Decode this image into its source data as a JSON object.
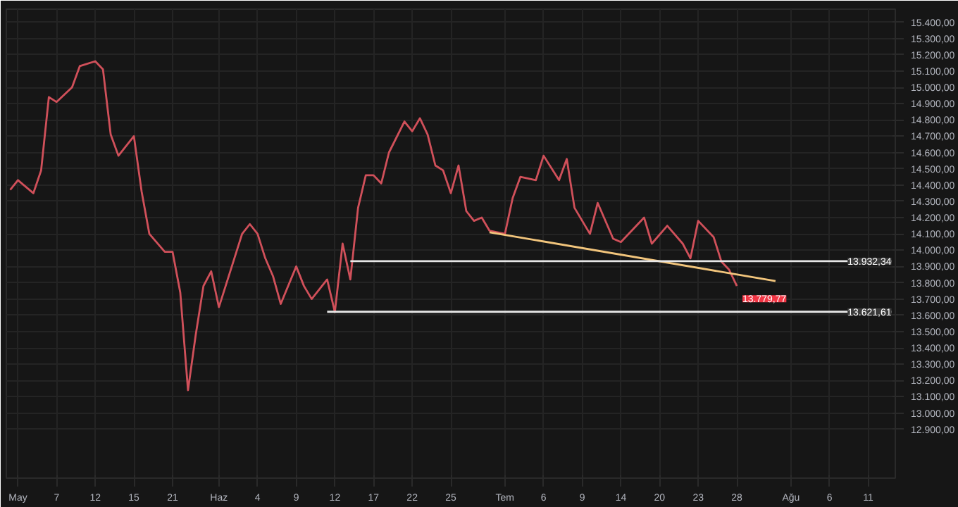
{
  "chart_data": {
    "type": "line",
    "grid": true,
    "line_style": "solid",
    "marker": "none",
    "ylim": [
      12600,
      15480
    ],
    "categories": [
      null,
      "May",
      null,
      null,
      null,
      null,
      "7",
      null,
      null,
      null,
      null,
      "12",
      null,
      null,
      null,
      null,
      "15",
      null,
      null,
      null,
      null,
      "21",
      null,
      null,
      null,
      null,
      null,
      "Haz",
      null,
      null,
      null,
      null,
      "4",
      null,
      null,
      null,
      null,
      "9",
      null,
      null,
      null,
      null,
      "12",
      null,
      null,
      null,
      null,
      "17",
      null,
      null,
      null,
      null,
      "22",
      null,
      null,
      null,
      null,
      "25",
      null,
      null,
      null,
      null,
      null,
      null,
      "Tem",
      null,
      null,
      null,
      null,
      "6",
      null,
      null,
      null,
      null,
      "9",
      null,
      null,
      null,
      null,
      "14",
      null,
      null,
      null,
      null,
      "20",
      null,
      null,
      null,
      null,
      "23",
      null,
      null,
      null,
      null,
      "28",
      null,
      null,
      null,
      null,
      null,
      null,
      "Ağu",
      null,
      null,
      null,
      null,
      "6",
      null,
      null,
      null,
      null,
      "11",
      null,
      null,
      null
    ],
    "yticks": [
      {
        "value": 12900,
        "label": "12.900,00"
      },
      {
        "value": 13000,
        "label": "13.000,00"
      },
      {
        "value": 13100,
        "label": "13.100,00"
      },
      {
        "value": 13200,
        "label": "13.200,00"
      },
      {
        "value": 13300,
        "label": "13.300,00"
      },
      {
        "value": 13400,
        "label": "13.400,00"
      },
      {
        "value": 13500,
        "label": "13.500,00"
      },
      {
        "value": 13600,
        "label": "13.600,00"
      },
      {
        "value": 13700,
        "label": "13.700,00"
      },
      {
        "value": 13800,
        "label": "13.800,00"
      },
      {
        "value": 13900,
        "label": "13.900,00"
      },
      {
        "value": 14000,
        "label": "14.000,00"
      },
      {
        "value": 14100,
        "label": "14.100,00"
      },
      {
        "value": 14200,
        "label": "14.200,00"
      },
      {
        "value": 14300,
        "label": "14.300,00"
      },
      {
        "value": 14400,
        "label": "14.400,00"
      },
      {
        "value": 14500,
        "label": "14.500,00"
      },
      {
        "value": 14600,
        "label": "14.600,00"
      },
      {
        "value": 14700,
        "label": "14.700,00"
      },
      {
        "value": 14800,
        "label": "14.800,00"
      },
      {
        "value": 14900,
        "label": "14.900,00"
      },
      {
        "value": 15000,
        "label": "15.000,00"
      },
      {
        "value": 15100,
        "label": "15.100,00"
      },
      {
        "value": 15200,
        "label": "15.200,00"
      },
      {
        "value": 15300,
        "label": "15.300,00"
      },
      {
        "value": 15400,
        "label": "15.400,00"
      }
    ],
    "series": [
      {
        "color": "#d0505a",
        "values": [
          14370,
          14430,
          null,
          14350,
          14490,
          14940,
          14910,
          null,
          15000,
          15130,
          null,
          15160,
          15110,
          14710,
          14580,
          null,
          14700,
          14360,
          14100,
          null,
          13990,
          13990,
          13740,
          13140,
          13480,
          13780,
          13870,
          13650,
          null,
          13950,
          14100,
          14160,
          14100,
          13950,
          13840,
          13670,
          null,
          13900,
          13780,
          13700,
          null,
          13820,
          13620,
          14040,
          13820,
          14260,
          14460,
          14460,
          14410,
          14600,
          null,
          14790,
          14730,
          14810,
          14710,
          14520,
          14490,
          14350,
          14520,
          14240,
          14180,
          14200,
          14120,
          null,
          14100,
          14320,
          14450,
          null,
          14430,
          14580,
          null,
          14430,
          14560,
          14260,
          null,
          14100,
          14290,
          null,
          14070,
          14050,
          null,
          null,
          14200,
          14040,
          null,
          14150,
          null,
          14040,
          13950,
          14180,
          null,
          14080,
          13930,
          13880,
          13779.77,
          null,
          null,
          null,
          null,
          null,
          null,
          null,
          null,
          null,
          null,
          null,
          null,
          null,
          null,
          null,
          null,
          null,
          null,
          null,
          null
        ],
        "value_labels": [
          null,
          null,
          null,
          null,
          null,
          null,
          null,
          null,
          null,
          null,
          null,
          null,
          null,
          null,
          null,
          null,
          null,
          null,
          null,
          null,
          null,
          null,
          null,
          null,
          null,
          null,
          null,
          null,
          null,
          null,
          null,
          null,
          null,
          null,
          null,
          null,
          null,
          null,
          null,
          null,
          null,
          null,
          null,
          null,
          null,
          null,
          null,
          null,
          null,
          null,
          null,
          null,
          null,
          null,
          null,
          null,
          null,
          null,
          null,
          null,
          null,
          null,
          null,
          null,
          null,
          null,
          null,
          null,
          null,
          null,
          null,
          null,
          null,
          null,
          null,
          null,
          null,
          null,
          null,
          null,
          null,
          null,
          null,
          null,
          null,
          null,
          null,
          null,
          null,
          null,
          null,
          null,
          null,
          null,
          "13.779,77",
          null,
          null,
          null,
          null,
          null,
          null,
          null,
          null,
          null,
          null,
          null,
          null,
          null,
          null,
          null,
          null,
          null,
          null,
          null,
          null
        ]
      },
      {
        "color": "#f2c57c",
        "values": [
          null,
          null,
          null,
          null,
          null,
          null,
          null,
          null,
          null,
          null,
          null,
          null,
          null,
          null,
          null,
          null,
          null,
          null,
          null,
          null,
          null,
          null,
          null,
          null,
          null,
          null,
          null,
          null,
          null,
          null,
          null,
          null,
          null,
          null,
          null,
          null,
          null,
          null,
          null,
          null,
          null,
          null,
          null,
          null,
          null,
          null,
          null,
          null,
          null,
          null,
          null,
          null,
          null,
          null,
          null,
          null,
          null,
          null,
          null,
          null,
          null,
          null,
          14110,
          null,
          null,
          null,
          null,
          null,
          null,
          null,
          null,
          null,
          null,
          null,
          null,
          null,
          null,
          null,
          null,
          null,
          null,
          null,
          null,
          null,
          null,
          null,
          null,
          null,
          null,
          null,
          null,
          null,
          null,
          null,
          null,
          null,
          null,
          null,
          null,
          13810,
          null,
          null,
          null,
          null,
          null,
          null,
          null,
          null,
          null,
          null,
          null,
          null,
          null,
          null,
          null
        ]
      },
      {
        "color": "#e6e6e6",
        "values": [
          null,
          null,
          null,
          null,
          null,
          null,
          null,
          null,
          null,
          null,
          null,
          null,
          null,
          null,
          null,
          null,
          null,
          null,
          null,
          null,
          null,
          null,
          null,
          null,
          null,
          null,
          null,
          null,
          null,
          null,
          null,
          null,
          null,
          null,
          null,
          null,
          null,
          null,
          null,
          null,
          null,
          null,
          null,
          null,
          13932.34,
          null,
          null,
          null,
          null,
          null,
          null,
          null,
          null,
          null,
          null,
          null,
          null,
          null,
          null,
          null,
          null,
          null,
          null,
          null,
          null,
          null,
          null,
          null,
          null,
          null,
          null,
          null,
          null,
          null,
          null,
          null,
          null,
          null,
          null,
          null,
          null,
          null,
          null,
          null,
          null,
          null,
          null,
          null,
          null,
          null,
          null,
          null,
          null,
          null,
          null,
          null,
          null,
          null,
          null,
          null,
          null,
          null,
          null,
          null,
          null,
          null,
          null,
          null,
          null,
          null,
          null,
          null,
          null,
          null,
          13932.34
        ],
        "value_labels": [
          null,
          null,
          null,
          null,
          null,
          null,
          null,
          null,
          null,
          null,
          null,
          null,
          null,
          null,
          null,
          null,
          null,
          null,
          null,
          null,
          null,
          null,
          null,
          null,
          null,
          null,
          null,
          null,
          null,
          null,
          null,
          null,
          null,
          null,
          null,
          null,
          null,
          null,
          null,
          null,
          null,
          null,
          null,
          null,
          null,
          null,
          null,
          null,
          null,
          null,
          null,
          null,
          null,
          null,
          null,
          null,
          null,
          null,
          null,
          null,
          null,
          null,
          null,
          null,
          null,
          null,
          null,
          null,
          null,
          null,
          null,
          null,
          null,
          null,
          null,
          null,
          null,
          null,
          null,
          null,
          null,
          null,
          null,
          null,
          null,
          null,
          null,
          null,
          null,
          null,
          null,
          null,
          null,
          null,
          null,
          null,
          null,
          null,
          null,
          null,
          null,
          null,
          null,
          null,
          null,
          null,
          null,
          null,
          null,
          null,
          null,
          null,
          null,
          null,
          "13.932,34"
        ]
      },
      {
        "color": "#e6e6e6",
        "values": [
          null,
          null,
          null,
          null,
          null,
          null,
          null,
          null,
          null,
          null,
          null,
          null,
          null,
          null,
          null,
          null,
          null,
          null,
          null,
          null,
          null,
          null,
          null,
          null,
          null,
          null,
          null,
          null,
          null,
          null,
          null,
          null,
          null,
          null,
          null,
          null,
          null,
          null,
          null,
          null,
          null,
          13621.61,
          null,
          null,
          null,
          null,
          null,
          null,
          null,
          null,
          null,
          null,
          null,
          null,
          null,
          null,
          null,
          null,
          null,
          null,
          null,
          null,
          null,
          null,
          null,
          null,
          null,
          null,
          null,
          null,
          null,
          null,
          null,
          null,
          null,
          null,
          null,
          null,
          null,
          null,
          null,
          null,
          null,
          null,
          null,
          null,
          null,
          null,
          null,
          null,
          null,
          null,
          null,
          null,
          null,
          null,
          null,
          null,
          null,
          null,
          null,
          null,
          null,
          null,
          null,
          null,
          null,
          null,
          null,
          null,
          null,
          null,
          null,
          null,
          13621.61
        ],
        "value_labels": [
          null,
          null,
          null,
          null,
          null,
          null,
          null,
          null,
          null,
          null,
          null,
          null,
          null,
          null,
          null,
          null,
          null,
          null,
          null,
          null,
          null,
          null,
          null,
          null,
          null,
          null,
          null,
          null,
          null,
          null,
          null,
          null,
          null,
          null,
          null,
          null,
          null,
          null,
          null,
          null,
          null,
          null,
          null,
          null,
          null,
          null,
          null,
          null,
          null,
          null,
          null,
          null,
          null,
          null,
          null,
          null,
          null,
          null,
          null,
          null,
          null,
          null,
          null,
          null,
          null,
          null,
          null,
          null,
          null,
          null,
          null,
          null,
          null,
          null,
          null,
          null,
          null,
          null,
          null,
          null,
          null,
          null,
          null,
          null,
          null,
          null,
          null,
          null,
          null,
          null,
          null,
          null,
          null,
          null,
          null,
          null,
          null,
          null,
          null,
          null,
          null,
          null,
          null,
          null,
          null,
          null,
          null,
          null,
          null,
          null,
          null,
          null,
          null,
          null,
          "13.621,61"
        ]
      }
    ]
  }
}
